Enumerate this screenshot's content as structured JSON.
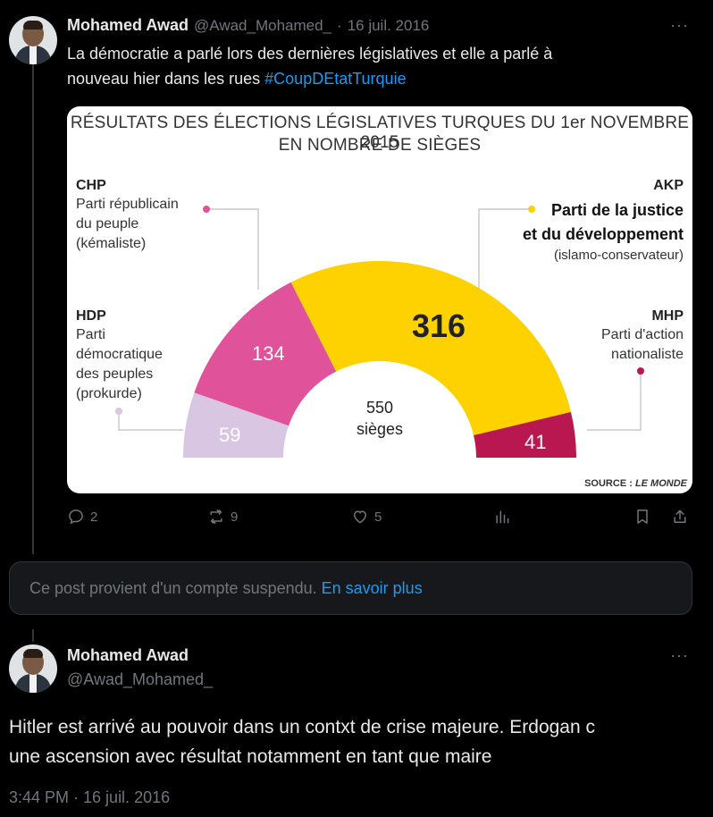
{
  "tweet": {
    "author_name": "Mohamed Awad",
    "handle": "@Awad_Mohamed_",
    "separator": "·",
    "date": "16 juil. 2016",
    "more": "···",
    "text_line1": "La démocratie a parlé lors des dernières législatives et elle a parlé à",
    "text_line2": "nouveau hier dans les rues ",
    "hashtag": "#CoupDEtatTurquie",
    "metrics": {
      "replies": "2",
      "reposts": "9",
      "likes": "5"
    }
  },
  "chart_data": {
    "type": "pie",
    "title_line1": "RÉSULTATS DES ÉLECTIONS LÉGISLATIVES TURQUES DU 1er NOVEMBRE 2015",
    "title_line2": "EN NOMBRE DE SIÈGES",
    "total_value": "550",
    "total_unit": "sièges",
    "source_label": "SOURCE : ",
    "source_name": "LE MONDE",
    "series": [
      {
        "code": "HDP",
        "name_lines": [
          "Parti",
          "démocratique",
          "des peuples",
          "(prokurde)"
        ],
        "value": 59,
        "color": "#d9c6e3"
      },
      {
        "code": "CHP",
        "name_lines": [
          "Parti républicain",
          "du peuple",
          "(kémaliste)"
        ],
        "value": 134,
        "color": "#e0529a"
      },
      {
        "code": "AKP",
        "name_lines": [
          "Parti de la justice",
          "et du développement"
        ],
        "desc": "(islamo-conservateur)",
        "value": 316,
        "color": "#fdd200"
      },
      {
        "code": "MHP",
        "name_lines": [
          "Parti d'action",
          "nationaliste"
        ],
        "value": 41,
        "color": "#b8174f"
      }
    ]
  },
  "notice": {
    "text": "Ce post provient d'un compte suspendu.",
    "link": "En savoir plus"
  },
  "reply": {
    "author_name": "Mohamed Awad",
    "handle": "@Awad_Mohamed_",
    "more": "···",
    "text_line1": "Hitler est arrivé au pouvoir dans un contxt de crise majeure. Erdogan c",
    "text_line2": "une ascension avec résultat notamment en tant que maire",
    "timestamp": "3:44 PM · 16 juil. 2016"
  }
}
